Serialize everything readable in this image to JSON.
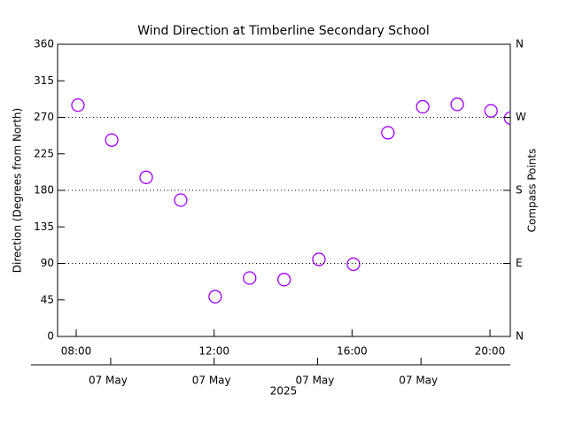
{
  "chart_data": {
    "type": "scatter",
    "title": "Wind Direction at Timberline Secondary School",
    "y_label": "Direction (Degrees from North)",
    "y2_label": "Compass Points",
    "x": [
      8.05,
      9.03,
      10.03,
      11.03,
      12.03,
      13.03,
      14.03,
      15.04,
      16.04,
      17.04,
      18.05,
      19.05,
      20.03,
      20.6
    ],
    "values": [
      285,
      242,
      196,
      168,
      49,
      72,
      70,
      95,
      89,
      251,
      283,
      286,
      278,
      269
    ],
    "color": "#a000ff",
    "xlim": [
      7.46,
      20.59
    ],
    "xticks": [
      {
        "value": 8,
        "label": "08:00"
      },
      {
        "value": 12,
        "label": "12:00"
      },
      {
        "value": 16,
        "label": "16:00"
      },
      {
        "value": 20,
        "label": "20:00"
      }
    ],
    "date_ticks": [
      {
        "value": 9,
        "label": "07 May"
      },
      {
        "value": 12,
        "label": "07 May"
      },
      {
        "value": 15,
        "label": "07 May"
      },
      {
        "value": 18,
        "label": "07 May"
      }
    ],
    "year_label": "2025",
    "ylim": [
      0,
      360
    ],
    "yticks": [
      0,
      45,
      90,
      135,
      180,
      225,
      270,
      315,
      360
    ],
    "y2lim": [
      0,
      360
    ],
    "y2ticks": [
      {
        "value": 0,
        "label": "N"
      },
      {
        "value": 90,
        "label": "E"
      },
      {
        "value": 180,
        "label": "S"
      },
      {
        "value": 270,
        "label": "W"
      },
      {
        "value": 360,
        "label": "N"
      }
    ],
    "grid": true
  }
}
